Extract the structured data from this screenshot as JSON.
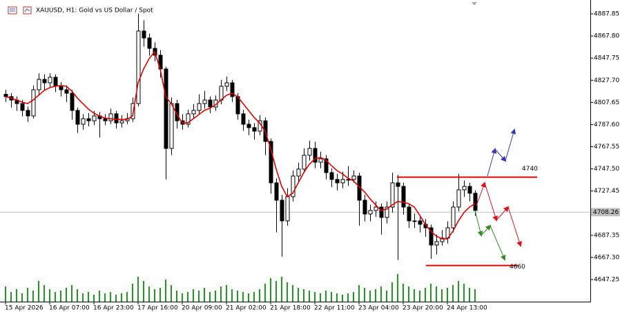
{
  "chart_data": {
    "type": "candlestick",
    "title": "XAUUSD, H1:  Gold vs US Dollar / Spot",
    "ohlc": [
      [
        4815.0,
        4819,
        4808,
        4812.9
      ],
      [
        4812.9,
        4816,
        4803,
        4809.8
      ],
      [
        4809.8,
        4813,
        4800,
        4806.6
      ],
      [
        4806.6,
        4810,
        4795,
        4800.4
      ],
      [
        4800.4,
        4804,
        4790,
        4795.4
      ],
      [
        4795.4,
        4823,
        4793,
        4819.1
      ],
      [
        4819.1,
        4834,
        4815,
        4828.5
      ],
      [
        4828.5,
        4833,
        4819,
        4825.4
      ],
      [
        4825.4,
        4834,
        4821,
        4830.4
      ],
      [
        4830.4,
        4833,
        4817,
        4822.3
      ],
      [
        4822.3,
        4826,
        4813,
        4819.1
      ],
      [
        4819.1,
        4823,
        4808,
        4816.0
      ],
      [
        4816.0,
        4819,
        4792,
        4800.4
      ],
      [
        4800.4,
        4803,
        4780,
        4787.9
      ],
      [
        4787.9,
        4797,
        4783,
        4792.9
      ],
      [
        4792.9,
        4798,
        4786,
        4791.0
      ],
      [
        4791.0,
        4800,
        4787,
        4795.4
      ],
      [
        4795.4,
        4799,
        4776,
        4792.9
      ],
      [
        4792.9,
        4797,
        4787,
        4791.0
      ],
      [
        4791.0,
        4802,
        4788,
        4797.3
      ],
      [
        4797.3,
        4800,
        4784,
        4789.1
      ],
      [
        4789.1,
        4796,
        4785,
        4791.0
      ],
      [
        4791.0,
        4798,
        4788,
        4792.9
      ],
      [
        4792.9,
        4812,
        4790,
        4806.6
      ],
      [
        4806.6,
        4888,
        4804,
        4872.3
      ],
      [
        4872.3,
        4882,
        4858,
        4866.0
      ],
      [
        4866.0,
        4870,
        4850,
        4856.6
      ],
      [
        4856.6,
        4862,
        4845,
        4850.4
      ],
      [
        4850.4,
        4855,
        4830,
        4837.9
      ],
      [
        4837.9,
        4840,
        4738,
        4766.0
      ],
      [
        4766.0,
        4812,
        4760,
        4806.6
      ],
      [
        4806.6,
        4810,
        4784,
        4791.0
      ],
      [
        4791.0,
        4797,
        4783,
        4787.9
      ],
      [
        4787.9,
        4801,
        4785,
        4797.3
      ],
      [
        4797.3,
        4806,
        4793,
        4800.4
      ],
      [
        4800.4,
        4815,
        4797,
        4806.6
      ],
      [
        4806.6,
        4818,
        4802,
        4809.8
      ],
      [
        4809.8,
        4813,
        4798,
        4803.5
      ],
      [
        4803.5,
        4814,
        4800,
        4809.8
      ],
      [
        4809.8,
        4828,
        4806,
        4822.3
      ],
      [
        4822.3,
        4831,
        4818,
        4825.4
      ],
      [
        4825.4,
        4828,
        4808,
        4812.9
      ],
      [
        4812.9,
        4816,
        4792,
        4797.3
      ],
      [
        4797.3,
        4801,
        4782,
        4787.9
      ],
      [
        4787.9,
        4792,
        4778,
        4784.8
      ],
      [
        4784.8,
        4789,
        4774,
        4781.6
      ],
      [
        4781.6,
        4796,
        4778,
        4791.0
      ],
      [
        4791.0,
        4794,
        4760,
        4772.3
      ],
      [
        4772.3,
        4775,
        4725,
        4734.8
      ],
      [
        4734.8,
        4739,
        4690,
        4719.1
      ],
      [
        4719.1,
        4724,
        4668,
        4700.4
      ],
      [
        4700.4,
        4730,
        4696,
        4722.3
      ],
      [
        4722.3,
        4746,
        4718,
        4741.0
      ],
      [
        4741.0,
        4753,
        4736,
        4747.3
      ],
      [
        4747.3,
        4766,
        4744,
        4759.8
      ],
      [
        4759.8,
        4773,
        4755,
        4766.0
      ],
      [
        4766.0,
        4772,
        4748,
        4753.5
      ],
      [
        4753.5,
        4763,
        4748,
        4756.6
      ],
      [
        4756.6,
        4760,
        4738,
        4744.1
      ],
      [
        4744.1,
        4748,
        4731,
        4737.9
      ],
      [
        4737.9,
        4743,
        4728,
        4734.8
      ],
      [
        4734.8,
        4745,
        4730,
        4737.9
      ],
      [
        4737.9,
        4750,
        4732,
        4737.9
      ],
      [
        4737.9,
        4746,
        4735,
        4741.0
      ],
      [
        4741.0,
        4744,
        4696,
        4719.1
      ],
      [
        4719.1,
        4724,
        4700,
        4706.6
      ],
      [
        4706.6,
        4715,
        4700,
        4709.8
      ],
      [
        4709.8,
        4718,
        4704,
        4712.9
      ],
      [
        4712.9,
        4716,
        4688,
        4703.5
      ],
      [
        4703.5,
        4718,
        4698,
        4712.9
      ],
      [
        4712.9,
        4744,
        4708,
        4734.8
      ],
      [
        4734.8,
        4742,
        4665,
        4731.6
      ],
      [
        4731.6,
        4735,
        4706,
        4712.9
      ],
      [
        4712.9,
        4716,
        4694,
        4700.4
      ],
      [
        4700.4,
        4707,
        4694,
        4700.4
      ],
      [
        4700.4,
        4704,
        4690,
        4697.3
      ],
      [
        4697.3,
        4702,
        4686,
        4694.1
      ],
      [
        4694.1,
        4697,
        4666,
        4678.5
      ],
      [
        4678.5,
        4688,
        4670,
        4681.6
      ],
      [
        4681.6,
        4692,
        4678,
        4684.8
      ],
      [
        4684.8,
        4700,
        4680,
        4694.1
      ],
      [
        4694.1,
        4718,
        4690,
        4712.9
      ],
      [
        4712.9,
        4743,
        4709,
        4728.5
      ],
      [
        4728.5,
        4737,
        4722,
        4731.6
      ],
      [
        4731.6,
        4735,
        4718,
        4725.4
      ],
      [
        4725.4,
        4728,
        4705,
        4709.8
      ]
    ],
    "ma": {
      "color": "#e00000",
      "values": [
        4812.9,
        4811.6,
        4809.8,
        4807.9,
        4806.6,
        4809.8,
        4814.1,
        4818.5,
        4821.0,
        4822.3,
        4822.9,
        4822.3,
        4817.9,
        4811.6,
        4806.6,
        4801.6,
        4797.9,
        4795.4,
        4793.5,
        4792.9,
        4792.3,
        4792.3,
        4792.3,
        4795.4,
        4825.4,
        4837.9,
        4847.3,
        4853.5,
        4837.9,
        4812.9,
        4806.6,
        4797.3,
        4789.1,
        4789.1,
        4792.9,
        4796.6,
        4800.4,
        4802.3,
        4805.4,
        4809.8,
        4814.1,
        4816.0,
        4812.9,
        4806.6,
        4800.4,
        4794.1,
        4789.1,
        4781.6,
        4766.0,
        4747.3,
        4731.6,
        4722.3,
        4725.4,
        4734.8,
        4744.1,
        4751.6,
        4756.6,
        4757.9,
        4755.4,
        4750.4,
        4746.0,
        4742.9,
        4739.1,
        4736.6,
        4731.6,
        4726.6,
        4720.4,
        4714.8,
        4709.8,
        4711.0,
        4714.8,
        4717.9,
        4717.3,
        4716.0,
        4712.9,
        4705.4,
        4697.3,
        4691.0,
        4686.6,
        4684.1,
        4684.1,
        4691.0,
        4700.4,
        4707.9,
        4712.9,
        4716.0
      ]
    },
    "volume": {
      "color": "#1f9a1f",
      "values": [
        22,
        14,
        18,
        12,
        20,
        16,
        30,
        24,
        18,
        14,
        16,
        20,
        24,
        18,
        12,
        14,
        10,
        16,
        12,
        14,
        10,
        12,
        14,
        26,
        36,
        30,
        22,
        18,
        20,
        32,
        24,
        16,
        12,
        14,
        18,
        16,
        20,
        14,
        16,
        22,
        24,
        18,
        16,
        14,
        12,
        14,
        18,
        26,
        34,
        30,
        36,
        28,
        24,
        20,
        18,
        16,
        14,
        12,
        16,
        14,
        12,
        10,
        12,
        14,
        24,
        20,
        16,
        18,
        22,
        16,
        28,
        40,
        26,
        22,
        18,
        16,
        20,
        26,
        22,
        18,
        20,
        24,
        30,
        26,
        20,
        18
      ]
    },
    "ylim": [
      4627.25,
      4898.5
    ],
    "yticks": [
      {
        "value": 4887.85,
        "label": "4887.85"
      },
      {
        "value": 4867.8,
        "label": "4867.80"
      },
      {
        "value": 4847.75,
        "label": "4847.75"
      },
      {
        "value": 4827.7,
        "label": "4827.70"
      },
      {
        "value": 4807.65,
        "label": "4807.65"
      },
      {
        "value": 4787.6,
        "label": "4787.60"
      },
      {
        "value": 4767.55,
        "label": "4767.55"
      },
      {
        "value": 4747.5,
        "label": "4747.50"
      },
      {
        "value": 4727.45,
        "label": "4727.45"
      },
      {
        "value": 4687.35,
        "label": "4687.35"
      },
      {
        "value": 4667.3,
        "label": "4667.30"
      },
      {
        "value": 4647.25,
        "label": "4647.25"
      }
    ],
    "xticks": [
      {
        "value": 0,
        "label": "15 Apr 2026"
      },
      {
        "value": 8,
        "label": "16 Apr 07:00"
      },
      {
        "value": 16,
        "label": "16 Apr 23:00"
      },
      {
        "value": 24,
        "label": "17 Apr 16:00"
      },
      {
        "value": 32,
        "label": "20 Apr 09:00"
      },
      {
        "value": 40,
        "label": "21 Apr 02:00"
      },
      {
        "value": 48,
        "label": "21 Apr 18:00"
      },
      {
        "value": 56,
        "label": "22 Apr 11:00"
      },
      {
        "value": 64,
        "label": "23 Apr 04:00"
      },
      {
        "value": 72,
        "label": "23 Apr 20:00"
      },
      {
        "value": 80,
        "label": "24 Apr 13:00"
      }
    ],
    "current_price": 4708.26,
    "levels": [
      {
        "value": 4740,
        "color": "#e00000"
      },
      {
        "value": 4660,
        "color": "#e00000"
      }
    ]
  }
}
